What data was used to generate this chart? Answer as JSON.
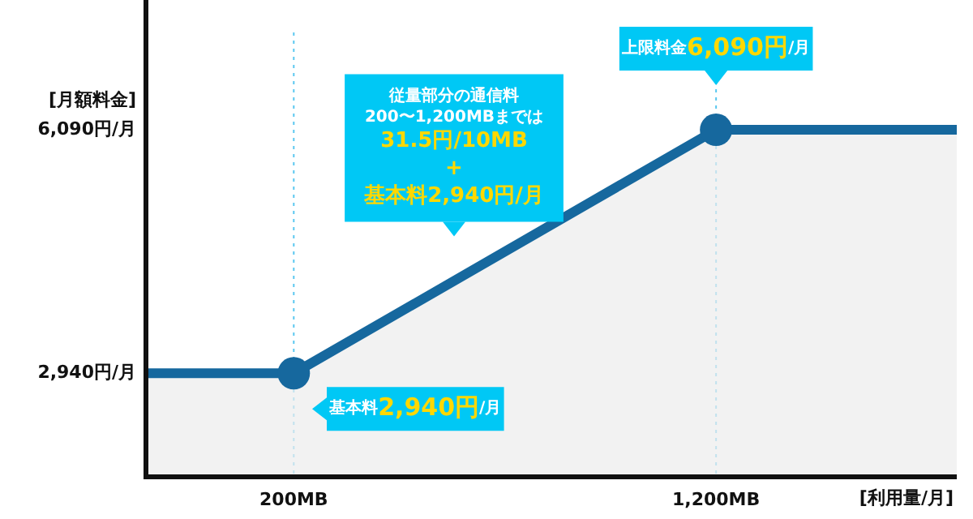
{
  "chart_data": {
    "type": "area",
    "ylabel": "[月額料金]",
    "xlabel": "[利用量/月]",
    "xlim": [
      -150,
      1770
    ],
    "ylim": [
      1600,
      7350
    ],
    "xticks": [
      {
        "value": 200,
        "label": "200MB"
      },
      {
        "value": 1200,
        "label": "1,200MB"
      }
    ],
    "yticks": [
      {
        "value": 2940,
        "label": "2,940円/月"
      },
      {
        "value": 6090,
        "label": "6,090円/月"
      }
    ],
    "series": [
      {
        "color": "#16689e",
        "x": [
          -150,
          200,
          1200,
          1770
        ],
        "values": [
          2940,
          2940,
          6090,
          6090
        ]
      },
      {
        "type": "scatter",
        "marker": "circle",
        "color": "#16689e",
        "x": [
          200,
          1200
        ],
        "values": [
          2940,
          6090
        ]
      }
    ],
    "ref_lines": [
      {
        "axis": "x",
        "value": 200,
        "color": "#5bc8f0",
        "line_style": "dotted"
      },
      {
        "axis": "x",
        "value": 1200,
        "color": "#5bc8f0",
        "line_style": "dotted"
      }
    ],
    "annotations": [
      {
        "text": "基本料2,940円/月",
        "x": 200,
        "y": 2940
      },
      "従量部分の通信料\n200〜1,200MBまでは\n31.5円/10MB\n+\n基本料2,940円/月",
      {
        "text": "上限料金6,090円/月",
        "x": 1200,
        "y": 6090
      }
    ],
    "grid": false,
    "legend": false
  }
}
